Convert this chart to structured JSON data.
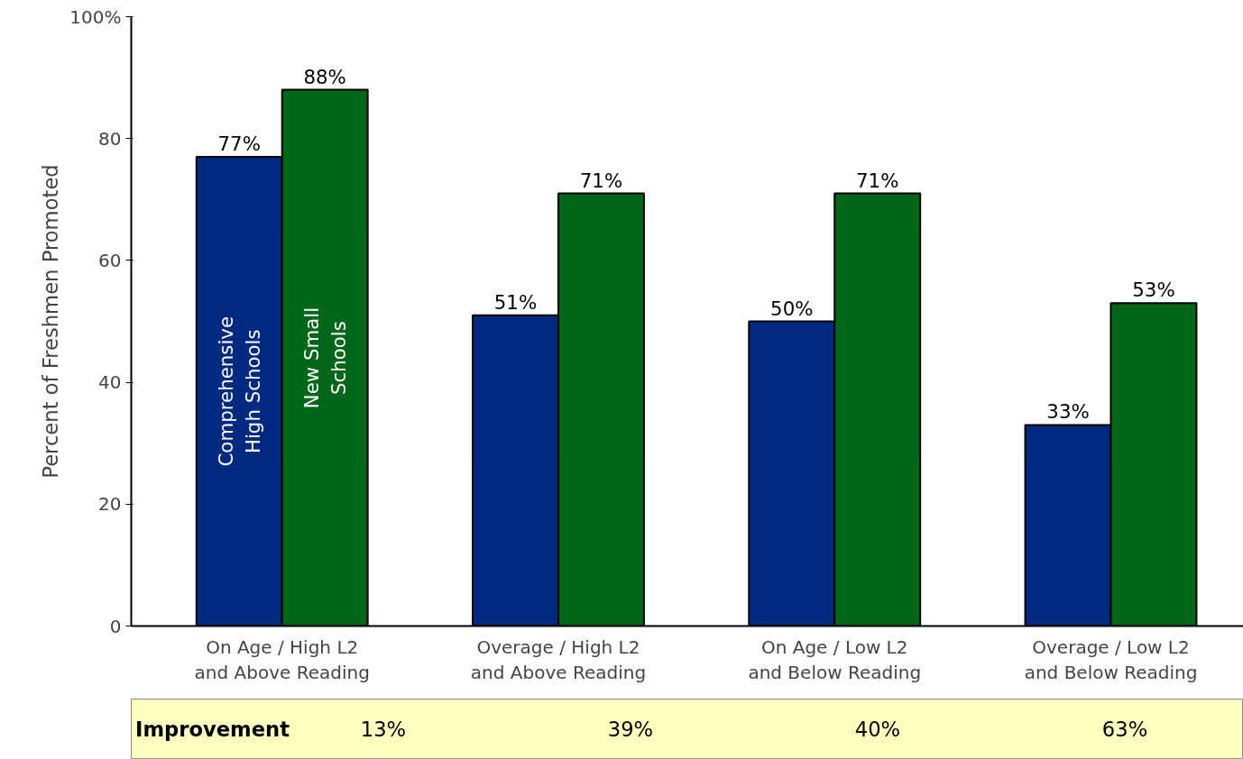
{
  "chart_data": {
    "type": "bar",
    "ylabel": "Percent of Freshmen Promoted",
    "categories": [
      "On Age / High L2\nand Above Reading",
      "Overage / High L2\nand Above Reading",
      "On Age / Low L2\nand Below Reading",
      "Overage / Low L2\nand Below Reading"
    ],
    "series": [
      {
        "name": "Comprehensive\nHigh Schools",
        "color": "#002a7f",
        "values": [
          77,
          51,
          50,
          33
        ],
        "value_labels": [
          "77%",
          "51%",
          "50%",
          "33%"
        ]
      },
      {
        "name": "New Small\nSchools",
        "color": "#006618",
        "values": [
          88,
          71,
          71,
          53
        ],
        "value_labels": [
          "88%",
          "71%",
          "71%",
          "53%"
        ]
      }
    ],
    "ylim": [
      0,
      100
    ],
    "yticks": [
      0,
      20,
      40,
      60,
      80,
      {
        "value": 100,
        "label": "100%"
      }
    ],
    "annotations": [
      "Improvement",
      "13%",
      "39%",
      "40%",
      "63%"
    ]
  }
}
